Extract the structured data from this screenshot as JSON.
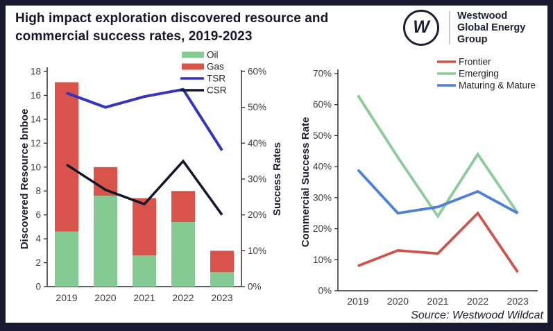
{
  "frame": {
    "border_color": "#191932",
    "background": "#ffffff"
  },
  "header": {
    "title_line1": "High impact exploration discovered resource and",
    "title_line2": "commercial success rates, 2019-2023",
    "logo_mark": "W",
    "logo_line1": "Westwood",
    "logo_line2": "Global Energy",
    "logo_line3": "Group"
  },
  "source_note": "Source: Westwood Wildcat",
  "chart_data": [
    {
      "type": "bar",
      "subtype": "stacked-bar-with-lines",
      "categories": [
        "2019",
        "2020",
        "2021",
        "2022",
        "2023"
      ],
      "bar_series": [
        {
          "name": "Oil",
          "color": "#85c993",
          "axis": "left",
          "values": [
            4.6,
            7.6,
            2.6,
            5.4,
            1.2
          ]
        },
        {
          "name": "Gas",
          "color": "#d8544a",
          "axis": "left",
          "values": [
            12.5,
            2.4,
            4.8,
            2.6,
            1.8
          ]
        }
      ],
      "line_series": [
        {
          "name": "TSR",
          "color": "#3534bd",
          "axis": "right",
          "values_pct": [
            54,
            50,
            53,
            55,
            38
          ]
        },
        {
          "name": "CSR",
          "color": "#15152d",
          "axis": "right",
          "values_pct": [
            34,
            27,
            23,
            35,
            20
          ]
        }
      ],
      "ylabel_left": "Discovered Resource bnboe",
      "ylabel_right": "Success Rates",
      "ylim_left": [
        0,
        18
      ],
      "ytick_step_left": 2,
      "ylim_right_pct": [
        0,
        60
      ],
      "ytick_step_right_pct": 10,
      "grid": false,
      "legend_position": "top-center"
    },
    {
      "type": "line",
      "categories": [
        "2019",
        "2020",
        "2021",
        "2022",
        "2023"
      ],
      "series": [
        {
          "name": "Frontier",
          "color": "#cf5348",
          "values_pct": [
            8,
            13,
            12,
            25,
            6
          ]
        },
        {
          "name": "Emerging",
          "color": "#8ccb96",
          "values_pct": [
            63,
            43,
            24,
            44,
            25
          ]
        },
        {
          "name": "Maturing & Mature",
          "color": "#4d7fd6",
          "values_pct": [
            39,
            25,
            27,
            32,
            25
          ]
        }
      ],
      "ylabel": "Commercial Success Rate",
      "ylim_pct": [
        0,
        70
      ],
      "ytick_step_pct": 10,
      "grid": false,
      "legend_position": "top-right"
    }
  ]
}
